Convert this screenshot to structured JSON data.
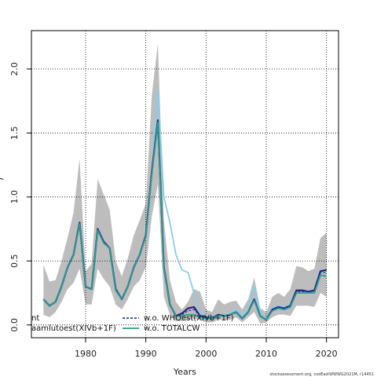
{
  "chart_data": {
    "type": "line",
    "xlabel": "Years",
    "ylabel_fragment": ")",
    "xlim": [
      1971,
      2022
    ],
    "ylim": [
      -0.1,
      2.3
    ],
    "x_ticks": [
      1980,
      1990,
      2000,
      2010,
      2020
    ],
    "y_ticks": [
      0.0,
      0.5,
      1.0,
      1.5,
      2.0
    ],
    "y_tick_labels": [
      "0.0",
      "0.5",
      "1.0",
      "1.5",
      "2.0"
    ],
    "grid": "dotted",
    "footer": "stockassessment.org, codEastWWWG2021M, r14451",
    "x": [
      1973,
      1974,
      1975,
      1976,
      1977,
      1978,
      1979,
      1980,
      1981,
      1982,
      1983,
      1984,
      1985,
      1986,
      1987,
      1988,
      1989,
      1990,
      1991,
      1992,
      1993,
      1994,
      1995,
      1996,
      1997,
      1998,
      1999,
      2000,
      2001,
      2002,
      2003,
      2004,
      2005,
      2006,
      2007,
      2008,
      2009,
      2010,
      2011,
      2012,
      2013,
      2014,
      2015,
      2016,
      2017,
      2018,
      2019,
      2020
    ],
    "band": {
      "color": "#bdbdbd",
      "upper": [
        0.47,
        0.34,
        0.35,
        0.5,
        0.68,
        0.88,
        1.3,
        0.42,
        0.48,
        1.14,
        1.02,
        0.9,
        0.5,
        0.38,
        0.52,
        0.7,
        0.82,
        0.95,
        1.8,
        2.2,
        0.82,
        0.35,
        0.18,
        0.12,
        0.18,
        0.28,
        0.26,
        0.12,
        0.1,
        0.2,
        0.16,
        0.18,
        0.19,
        0.12,
        0.2,
        0.37,
        0.13,
        0.1,
        0.22,
        0.25,
        0.22,
        0.28,
        0.46,
        0.45,
        0.42,
        0.44,
        0.68,
        0.72
      ],
      "lower": [
        0.08,
        0.06,
        0.1,
        0.18,
        0.28,
        0.33,
        0.44,
        0.16,
        0.16,
        0.44,
        0.36,
        0.3,
        0.16,
        0.12,
        0.2,
        0.3,
        0.35,
        0.45,
        0.85,
        1.1,
        0.22,
        0.08,
        0.03,
        0.03,
        0.04,
        0.05,
        0.04,
        0.02,
        0.02,
        0.04,
        0.04,
        0.04,
        0.06,
        0.02,
        0.06,
        0.1,
        0.01,
        0.02,
        0.06,
        0.08,
        0.08,
        0.07,
        0.15,
        0.15,
        0.15,
        0.14,
        0.25,
        0.22
      ]
    },
    "series": [
      {
        "name": "aamlutoest(XIVb+1F)",
        "color": "#2b1a7e",
        "dash": "",
        "width": 2.2,
        "values": [
          0.2,
          0.15,
          0.18,
          0.3,
          0.45,
          0.55,
          0.8,
          0.3,
          0.28,
          0.75,
          0.65,
          0.6,
          0.28,
          0.2,
          0.3,
          0.45,
          0.55,
          0.7,
          1.2,
          1.6,
          0.45,
          0.16,
          0.07,
          0.09,
          0.13,
          0.14,
          0.07,
          0.06,
          0.05,
          0.08,
          0.07,
          0.08,
          0.1,
          0.05,
          0.1,
          0.2,
          0.07,
          0.04,
          0.12,
          0.14,
          0.13,
          0.15,
          0.27,
          0.27,
          0.26,
          0.27,
          0.42,
          0.43
        ]
      },
      {
        "name": "w.o. WHOest(XIVb+1F)",
        "color": "#1a4a9c",
        "dash": "3,2",
        "width": 1.4,
        "values": [
          0.2,
          0.15,
          0.18,
          0.3,
          0.45,
          0.55,
          0.8,
          0.3,
          0.28,
          0.75,
          0.65,
          0.6,
          0.28,
          0.2,
          0.3,
          0.45,
          0.55,
          0.7,
          1.2,
          1.6,
          0.45,
          0.16,
          0.07,
          0.08,
          0.11,
          0.12,
          0.07,
          0.06,
          0.05,
          0.08,
          0.07,
          0.08,
          0.1,
          0.05,
          0.1,
          0.2,
          0.07,
          0.04,
          0.12,
          0.14,
          0.13,
          0.15,
          0.26,
          0.26,
          0.26,
          0.26,
          0.41,
          0.41
        ]
      },
      {
        "name": "w.o. TOTALCW",
        "color": "#2a9d8f",
        "dash": "",
        "width": 1.8,
        "values": [
          0.2,
          0.15,
          0.18,
          0.3,
          0.45,
          0.55,
          0.79,
          0.3,
          0.28,
          0.74,
          0.64,
          0.6,
          0.27,
          0.2,
          0.3,
          0.45,
          0.55,
          0.69,
          1.18,
          1.58,
          0.44,
          0.16,
          0.07,
          0.07,
          0.08,
          0.08,
          0.06,
          0.05,
          0.05,
          0.07,
          0.07,
          0.08,
          0.1,
          0.05,
          0.1,
          0.19,
          0.07,
          0.04,
          0.11,
          0.13,
          0.12,
          0.14,
          0.25,
          0.25,
          0.25,
          0.25,
          0.39,
          0.38
        ]
      },
      {
        "name": "",
        "color": "#87ceeb",
        "dash": "",
        "width": 1.8,
        "values": [
          0.2,
          0.15,
          0.18,
          0.3,
          0.45,
          0.55,
          0.8,
          0.3,
          0.28,
          0.75,
          0.65,
          0.6,
          0.28,
          0.2,
          0.3,
          0.45,
          0.55,
          0.7,
          1.2,
          1.85,
          1.0,
          0.8,
          0.55,
          0.43,
          0.41,
          0.25,
          0.1,
          0.08,
          0.06,
          0.08,
          0.08,
          0.09,
          0.12,
          0.07,
          0.14,
          0.3,
          0.1,
          0.05,
          0.13,
          0.15,
          0.14,
          0.16,
          0.27,
          0.27,
          0.27,
          0.27,
          0.43,
          0.42
        ]
      }
    ],
    "legend": {
      "placement": "bottom-left",
      "col1": [
        {
          "label": "nt",
          "color": "",
          "dash": ""
        },
        {
          "label": "aamlutoest(XIVb+1F)",
          "color": "",
          "dash": ""
        }
      ],
      "col2": [
        {
          "label": "w.o. WHOest(XIVb+1F)",
          "color": "#1a4a9c",
          "dash": "3,2"
        },
        {
          "label": "w.o. TOTALCW",
          "color": "#2a9d8f",
          "dash": ""
        }
      ]
    }
  }
}
